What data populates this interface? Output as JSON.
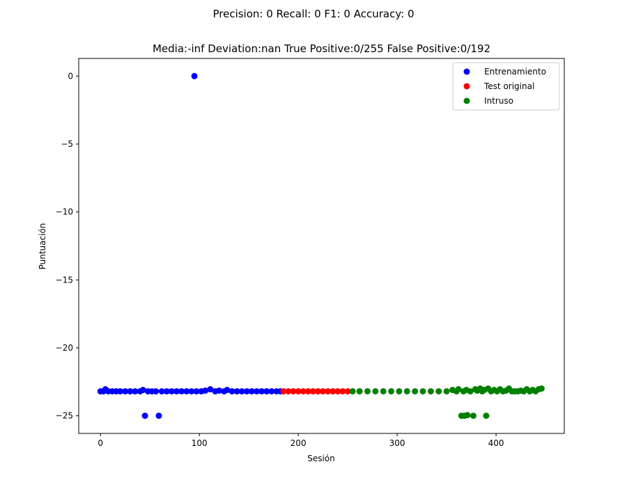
{
  "figure": {
    "suptitle": "Precision: 0 Recall: 0 F1: 0 Accuracy: 0"
  },
  "chart_data": {
    "type": "scatter",
    "title": "Media:-inf Deviation:nan True Positive:0/255 False Positive:0/192",
    "xlabel": "Sesión",
    "ylabel": "Puntuación",
    "xlim": [
      -22,
      469
    ],
    "ylim": [
      -26.3,
      1.3
    ],
    "xticks": [
      0,
      100,
      200,
      300,
      400
    ],
    "yticks": [
      0,
      -5,
      -10,
      -15,
      -20,
      -25
    ],
    "ytick_labels": [
      "0",
      "−5",
      "−10",
      "−15",
      "−20",
      "−25"
    ],
    "grid": false,
    "legend_position": "top-right",
    "series": [
      {
        "name": "Entrenamiento",
        "color": "#0000ff",
        "points": [
          [
            0,
            -23.2
          ],
          [
            3,
            -23.2
          ],
          [
            5,
            -23.05
          ],
          [
            8,
            -23.2
          ],
          [
            12,
            -23.2
          ],
          [
            16,
            -23.2
          ],
          [
            20,
            -23.2
          ],
          [
            25,
            -23.2
          ],
          [
            30,
            -23.2
          ],
          [
            35,
            -23.2
          ],
          [
            40,
            -23.2
          ],
          [
            43,
            -23.1
          ],
          [
            45,
            -25.0
          ],
          [
            48,
            -23.2
          ],
          [
            52,
            -23.2
          ],
          [
            56,
            -23.2
          ],
          [
            59,
            -25.0
          ],
          [
            62,
            -23.2
          ],
          [
            67,
            -23.2
          ],
          [
            72,
            -23.2
          ],
          [
            77,
            -23.2
          ],
          [
            82,
            -23.2
          ],
          [
            87,
            -23.2
          ],
          [
            92,
            -23.2
          ],
          [
            95,
            0.0
          ],
          [
            97,
            -23.2
          ],
          [
            102,
            -23.2
          ],
          [
            106,
            -23.15
          ],
          [
            111,
            -23.05
          ],
          [
            116,
            -23.2
          ],
          [
            120,
            -23.15
          ],
          [
            125,
            -23.2
          ],
          [
            128,
            -23.1
          ],
          [
            133,
            -23.2
          ],
          [
            138,
            -23.2
          ],
          [
            143,
            -23.2
          ],
          [
            148,
            -23.2
          ],
          [
            153,
            -23.2
          ],
          [
            158,
            -23.2
          ],
          [
            163,
            -23.2
          ],
          [
            168,
            -23.2
          ],
          [
            173,
            -23.2
          ],
          [
            178,
            -23.2
          ],
          [
            182,
            -23.2
          ]
        ]
      },
      {
        "name": "Test original",
        "color": "#ff0000",
        "points": [
          [
            185,
            -23.2
          ],
          [
            190,
            -23.2
          ],
          [
            195,
            -23.2
          ],
          [
            200,
            -23.2
          ],
          [
            205,
            -23.2
          ],
          [
            210,
            -23.2
          ],
          [
            215,
            -23.2
          ],
          [
            220,
            -23.2
          ],
          [
            225,
            -23.2
          ],
          [
            230,
            -23.2
          ],
          [
            235,
            -23.2
          ],
          [
            240,
            -23.2
          ],
          [
            245,
            -23.2
          ],
          [
            250,
            -23.2
          ]
        ]
      },
      {
        "name": "Intruso",
        "color": "#008000",
        "points": [
          [
            255,
            -23.2
          ],
          [
            262,
            -23.2
          ],
          [
            270,
            -23.2
          ],
          [
            278,
            -23.2
          ],
          [
            286,
            -23.2
          ],
          [
            294,
            -23.2
          ],
          [
            302,
            -23.2
          ],
          [
            310,
            -23.2
          ],
          [
            318,
            -23.2
          ],
          [
            326,
            -23.2
          ],
          [
            334,
            -23.2
          ],
          [
            342,
            -23.2
          ],
          [
            350,
            -23.2
          ],
          [
            356,
            -23.1
          ],
          [
            360,
            -23.2
          ],
          [
            362,
            -23.05
          ],
          [
            365,
            -25.0
          ],
          [
            367,
            -23.2
          ],
          [
            368,
            -25.0
          ],
          [
            370,
            -23.1
          ],
          [
            371,
            -24.95
          ],
          [
            374,
            -23.2
          ],
          [
            377,
            -25.0
          ],
          [
            379,
            -23.05
          ],
          [
            381,
            -23.15
          ],
          [
            384,
            -23.0
          ],
          [
            386,
            -23.2
          ],
          [
            388,
            -23.1
          ],
          [
            390,
            -25.0
          ],
          [
            392,
            -23.0
          ],
          [
            395,
            -23.2
          ],
          [
            398,
            -23.1
          ],
          [
            401,
            -23.2
          ],
          [
            404,
            -23.05
          ],
          [
            407,
            -23.2
          ],
          [
            410,
            -23.15
          ],
          [
            413,
            -23.0
          ],
          [
            416,
            -23.2
          ],
          [
            419,
            -23.2
          ],
          [
            422,
            -23.2
          ],
          [
            425,
            -23.15
          ],
          [
            428,
            -23.2
          ],
          [
            431,
            -23.05
          ],
          [
            434,
            -23.2
          ],
          [
            437,
            -23.1
          ],
          [
            440,
            -23.2
          ],
          [
            443,
            -23.05
          ],
          [
            446,
            -23.0
          ]
        ]
      }
    ]
  }
}
